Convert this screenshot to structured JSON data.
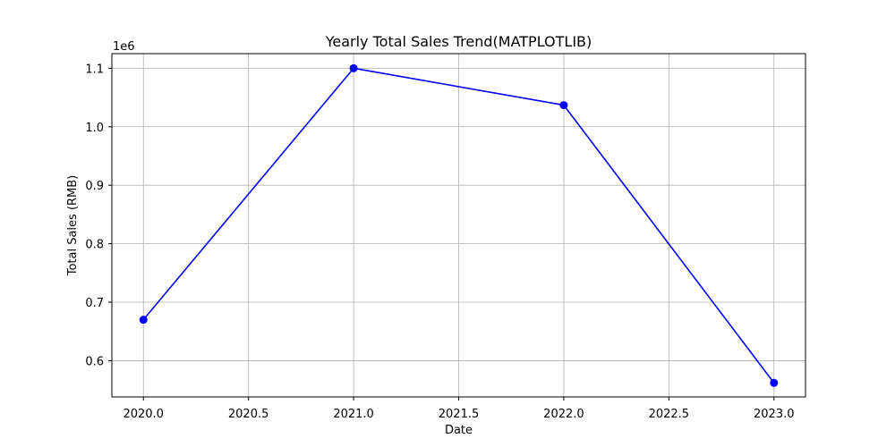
{
  "chart_data": {
    "type": "line",
    "title": "Yearly Total Sales Trend(MATPLOTLIB)",
    "xlabel": "Date",
    "ylabel": "Total Sales (RMB)",
    "y_offset_text": "1e6",
    "x": [
      2020.0,
      2021.0,
      2022.0,
      2023.0
    ],
    "series": [
      {
        "values": [
          670000,
          1100000,
          1037000,
          562000
        ],
        "color": "#0000ff",
        "marker": "circle"
      }
    ],
    "xlim": [
      2019.85,
      2023.15
    ],
    "ylim": [
      0.538,
      1.125
    ],
    "y_scale_factor": 1000000,
    "x_ticks": [
      2020.0,
      2020.5,
      2021.0,
      2021.5,
      2022.0,
      2022.5,
      2023.0
    ],
    "x_tick_labels": [
      "2020.0",
      "2020.5",
      "2021.0",
      "2021.5",
      "2022.0",
      "2022.5",
      "2023.0"
    ],
    "y_ticks": [
      0.6,
      0.7,
      0.8,
      0.9,
      1.0,
      1.1
    ],
    "y_tick_labels": [
      "0.6",
      "0.7",
      "0.8",
      "0.9",
      "1.0",
      "1.1"
    ],
    "grid": true,
    "grid_color": "#b0b0b0",
    "legend": false
  }
}
